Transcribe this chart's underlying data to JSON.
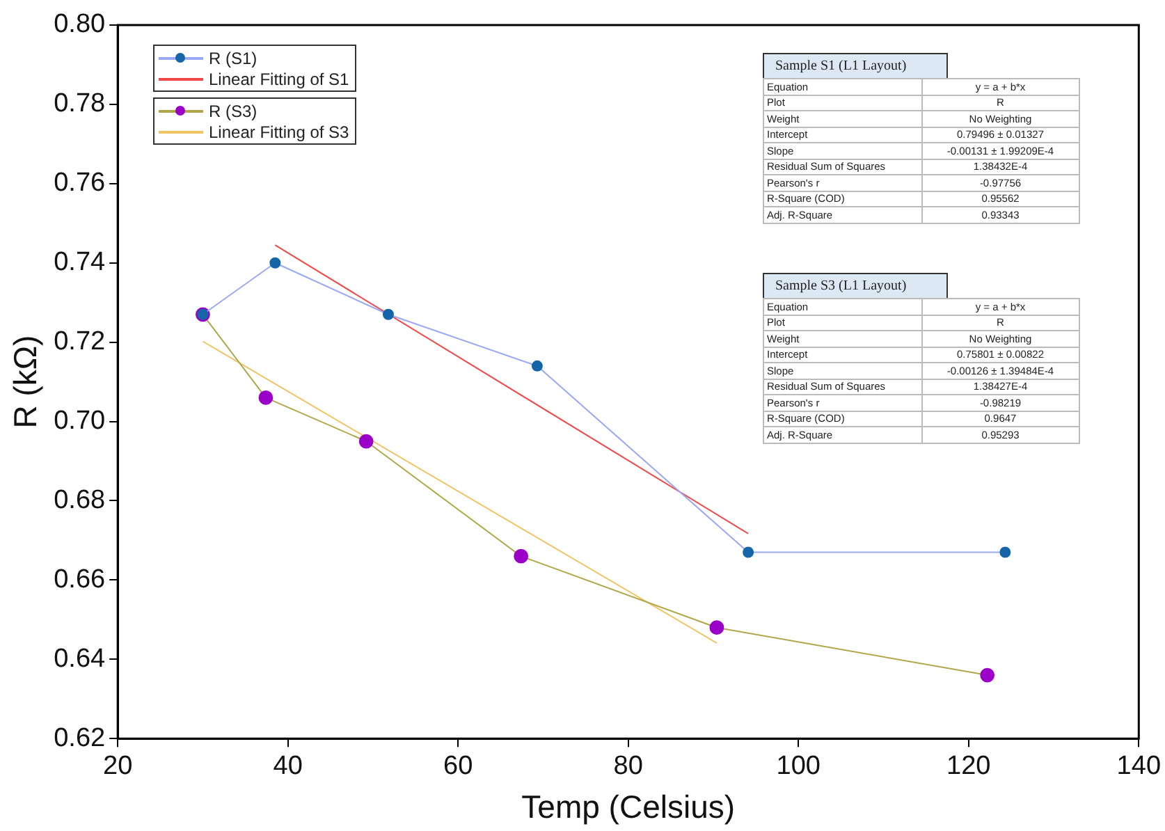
{
  "chart_data": {
    "type": "line",
    "xlabel": "Temp (Celsius)",
    "ylabel": "R (kΩ)",
    "xlim": [
      20,
      140
    ],
    "xticks": [
      20,
      40,
      60,
      80,
      100,
      120,
      140
    ],
    "ylim": [
      0.62,
      0.8
    ],
    "yticks": [
      {
        "value": 0.62,
        "label": "0.62"
      },
      {
        "value": 0.64,
        "label": "0.64"
      },
      {
        "value": 0.66,
        "label": "0.66"
      },
      {
        "value": 0.68,
        "label": "0.68"
      },
      {
        "value": 0.7,
        "label": "0.70"
      },
      {
        "value": 0.72,
        "label": "0.72"
      },
      {
        "value": 0.74,
        "label": "0.74"
      },
      {
        "value": 0.76,
        "label": "0.76"
      },
      {
        "value": 0.78,
        "label": "0.78"
      },
      {
        "value": 0.8,
        "label": "0.80"
      }
    ],
    "grid": false,
    "legend": "top left",
    "marker": "circle",
    "line_style": "solid",
    "series": [
      {
        "name": "R (S1)",
        "color": "#9aa8f5",
        "colors": [
          "#1565a8",
          "#1565a8",
          "#1565a8",
          "#1565a8",
          "#1565a8",
          "#1565a8"
        ],
        "x": [
          30,
          38.5,
          51.8,
          69.3,
          94.1,
          124.3
        ],
        "values": [
          0.727,
          0.74,
          0.727,
          0.714,
          0.667,
          0.667
        ]
      },
      {
        "name": "Linear Fitting of S1",
        "type": "line",
        "marker": "none",
        "color": "#f04848",
        "x": [
          38.5,
          94.1
        ],
        "values": [
          0.7445,
          0.6717
        ]
      },
      {
        "name": "R (S3)",
        "color": "#b0a848",
        "colors": [
          "#9a00c8",
          "#9a00c8",
          "#9a00c8",
          "#9a00c8",
          "#9a00c8",
          "#9a00c8"
        ],
        "x": [
          30,
          37.4,
          49.2,
          67.4,
          90.4,
          122.2
        ],
        "values": [
          0.727,
          0.706,
          0.695,
          0.666,
          0.648,
          0.636
        ]
      },
      {
        "name": "Linear Fitting of S3",
        "type": "line",
        "marker": "none",
        "color": "#f0c464",
        "x": [
          30,
          90.4
        ],
        "values": [
          0.7202,
          0.6441
        ]
      }
    ],
    "annotations": [
      "Sample S1 (L1 Layout)",
      "Equation",
      "y = a + b*x",
      "Plot",
      "R",
      "Weight",
      "No Weighting",
      "Intercept",
      "0.79496 ± 0.01327",
      "Slope",
      "-0.00131 ± 1.99209E-4",
      "Residual Sum of Squares",
      "1.38432E-4",
      "Pearson's r",
      "-0.97756",
      "R-Square (COD)",
      "0.95562",
      "Adj. R-Square",
      "0.93343",
      "Sample S3 (L1 Layout)",
      "Equation",
      "y = a + b*x",
      "Plot",
      "R",
      "Weight",
      "No Weighting",
      "Intercept",
      "0.75801 ± 0.00822",
      "Slope",
      "-0.00126 ± 1.39484E-4",
      "Residual Sum of Squares",
      "1.38427E-4",
      "Pearson's r",
      "-0.98219",
      "R-Square (COD)",
      "0.9647",
      "Adj. R-Square",
      "0.95293"
    ]
  }
}
